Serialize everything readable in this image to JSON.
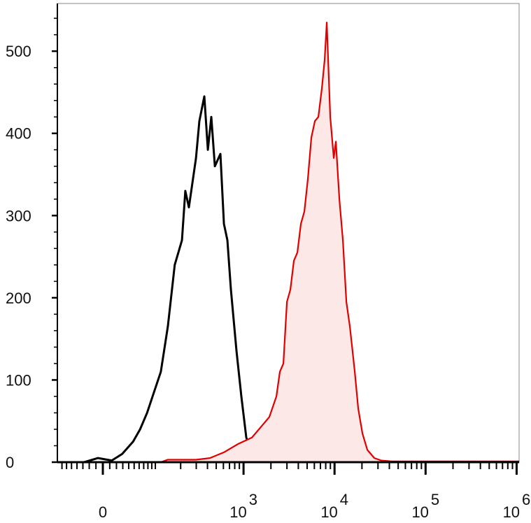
{
  "chart_data": {
    "type": "line",
    "xscale": "arcsinh",
    "xlim": [
      -81,
      1065000
    ],
    "ylim": [
      0,
      558
    ],
    "yticks": [
      0,
      100,
      200,
      300,
      400,
      500
    ],
    "yminorticks": [
      20,
      40,
      60,
      80,
      120,
      140,
      160,
      180,
      220,
      240,
      260,
      280,
      320,
      340,
      360,
      380,
      420,
      440,
      460,
      480,
      520,
      540
    ],
    "xticks": [
      0,
      {
        "value": 1000,
        "label": "10",
        "exponent": "3"
      },
      {
        "value": 10000,
        "label": "10",
        "exponent": "4"
      },
      {
        "value": 100000,
        "label": "10",
        "exponent": "5"
      },
      {
        "value": 1000000,
        "label": "10",
        "exponent": "6"
      }
    ],
    "xminorticks": [
      -70,
      -60,
      -50,
      -40,
      -30,
      -20,
      -10,
      10,
      20,
      30,
      40,
      50,
      60,
      70,
      80,
      90,
      100,
      200,
      300,
      400,
      500,
      600,
      700,
      800,
      900,
      2000,
      3000,
      4000,
      5000,
      6000,
      7000,
      8000,
      9000,
      20000,
      30000,
      40000,
      50000,
      60000,
      70000,
      80000,
      90000,
      200000,
      300000,
      400000,
      500000,
      600000,
      700000,
      800000,
      900000
    ],
    "series": [
      {
        "color": "#000000",
        "x": [
          -81,
          -53,
          -28,
          -7,
          13,
          29,
          48,
          62,
          78,
          96,
          117,
          142,
          171,
          207,
          226,
          248,
          298,
          325,
          369,
          404,
          441,
          483,
          556,
          608,
          664,
          726,
          837,
          946,
          1072,
          1237,
          1476,
          2508,
          6082,
          12346,
          29897,
          1065000
        ],
        "values": [
          0,
          0,
          0,
          5,
          2,
          10,
          25,
          40,
          60,
          85,
          110,
          165,
          240,
          270,
          330,
          310,
          370,
          415,
          445,
          380,
          420,
          360,
          375,
          290,
          270,
          210,
          135,
          80,
          30,
          10,
          2,
          2,
          1,
          2,
          0,
          0
        ]
      },
      {
        "color": "#e00000",
        "fill": "#fde8e8",
        "x": [
          -81,
          117,
          142,
          298,
          426,
          608,
          866,
          1237,
          1613,
          1921,
          2297,
          2508,
          2742,
          2998,
          3272,
          3574,
          3905,
          4269,
          4663,
          5096,
          5563,
          6082,
          6641,
          7262,
          7792,
          8214,
          8972,
          9804,
          10340,
          11297,
          12346,
          13486,
          14735,
          16678,
          18212,
          20241,
          22914,
          27360,
          32661,
          42579,
          1065000
        ],
        "values": [
          0,
          0,
          3,
          3,
          5,
          12,
          22,
          30,
          45,
          55,
          80,
          110,
          120,
          195,
          210,
          245,
          255,
          290,
          305,
          345,
          395,
          415,
          420,
          455,
          490,
          535,
          420,
          370,
          390,
          320,
          270,
          195,
          165,
          110,
          65,
          35,
          15,
          5,
          2,
          1,
          1
        ]
      }
    ]
  }
}
